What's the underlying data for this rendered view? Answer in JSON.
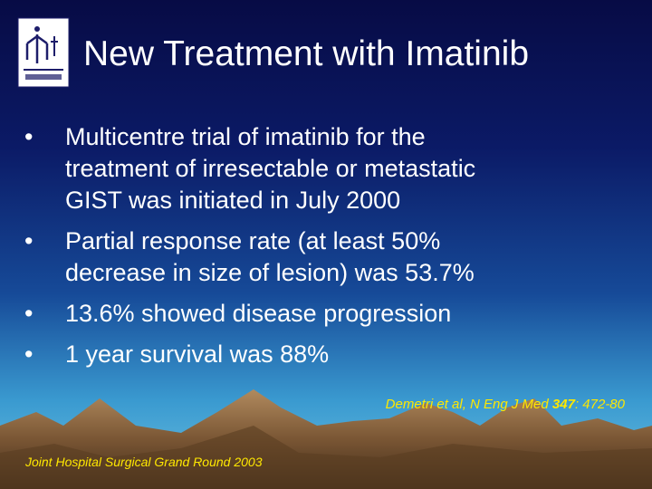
{
  "title": "New Treatment with Imatinib",
  "bullets": [
    {
      "lines": [
        "Multicentre trial of imatinib for the",
        "treatment of irresectable or metastatic",
        "GIST was initiated in July 2000"
      ]
    },
    {
      "lines": [
        "Partial response rate (at least 50%",
        "decrease in size of lesion) was 53.7%"
      ]
    },
    {
      "lines": [
        "13.6% showed disease progression"
      ]
    },
    {
      "lines": [
        "1 year survival was 88%"
      ]
    }
  ],
  "citation": {
    "authors": "Demetri et al, N Eng J Med",
    "volume": "347",
    "pages": ": 472-80"
  },
  "footer": "Joint Hospital Surgical Grand Round 2003"
}
